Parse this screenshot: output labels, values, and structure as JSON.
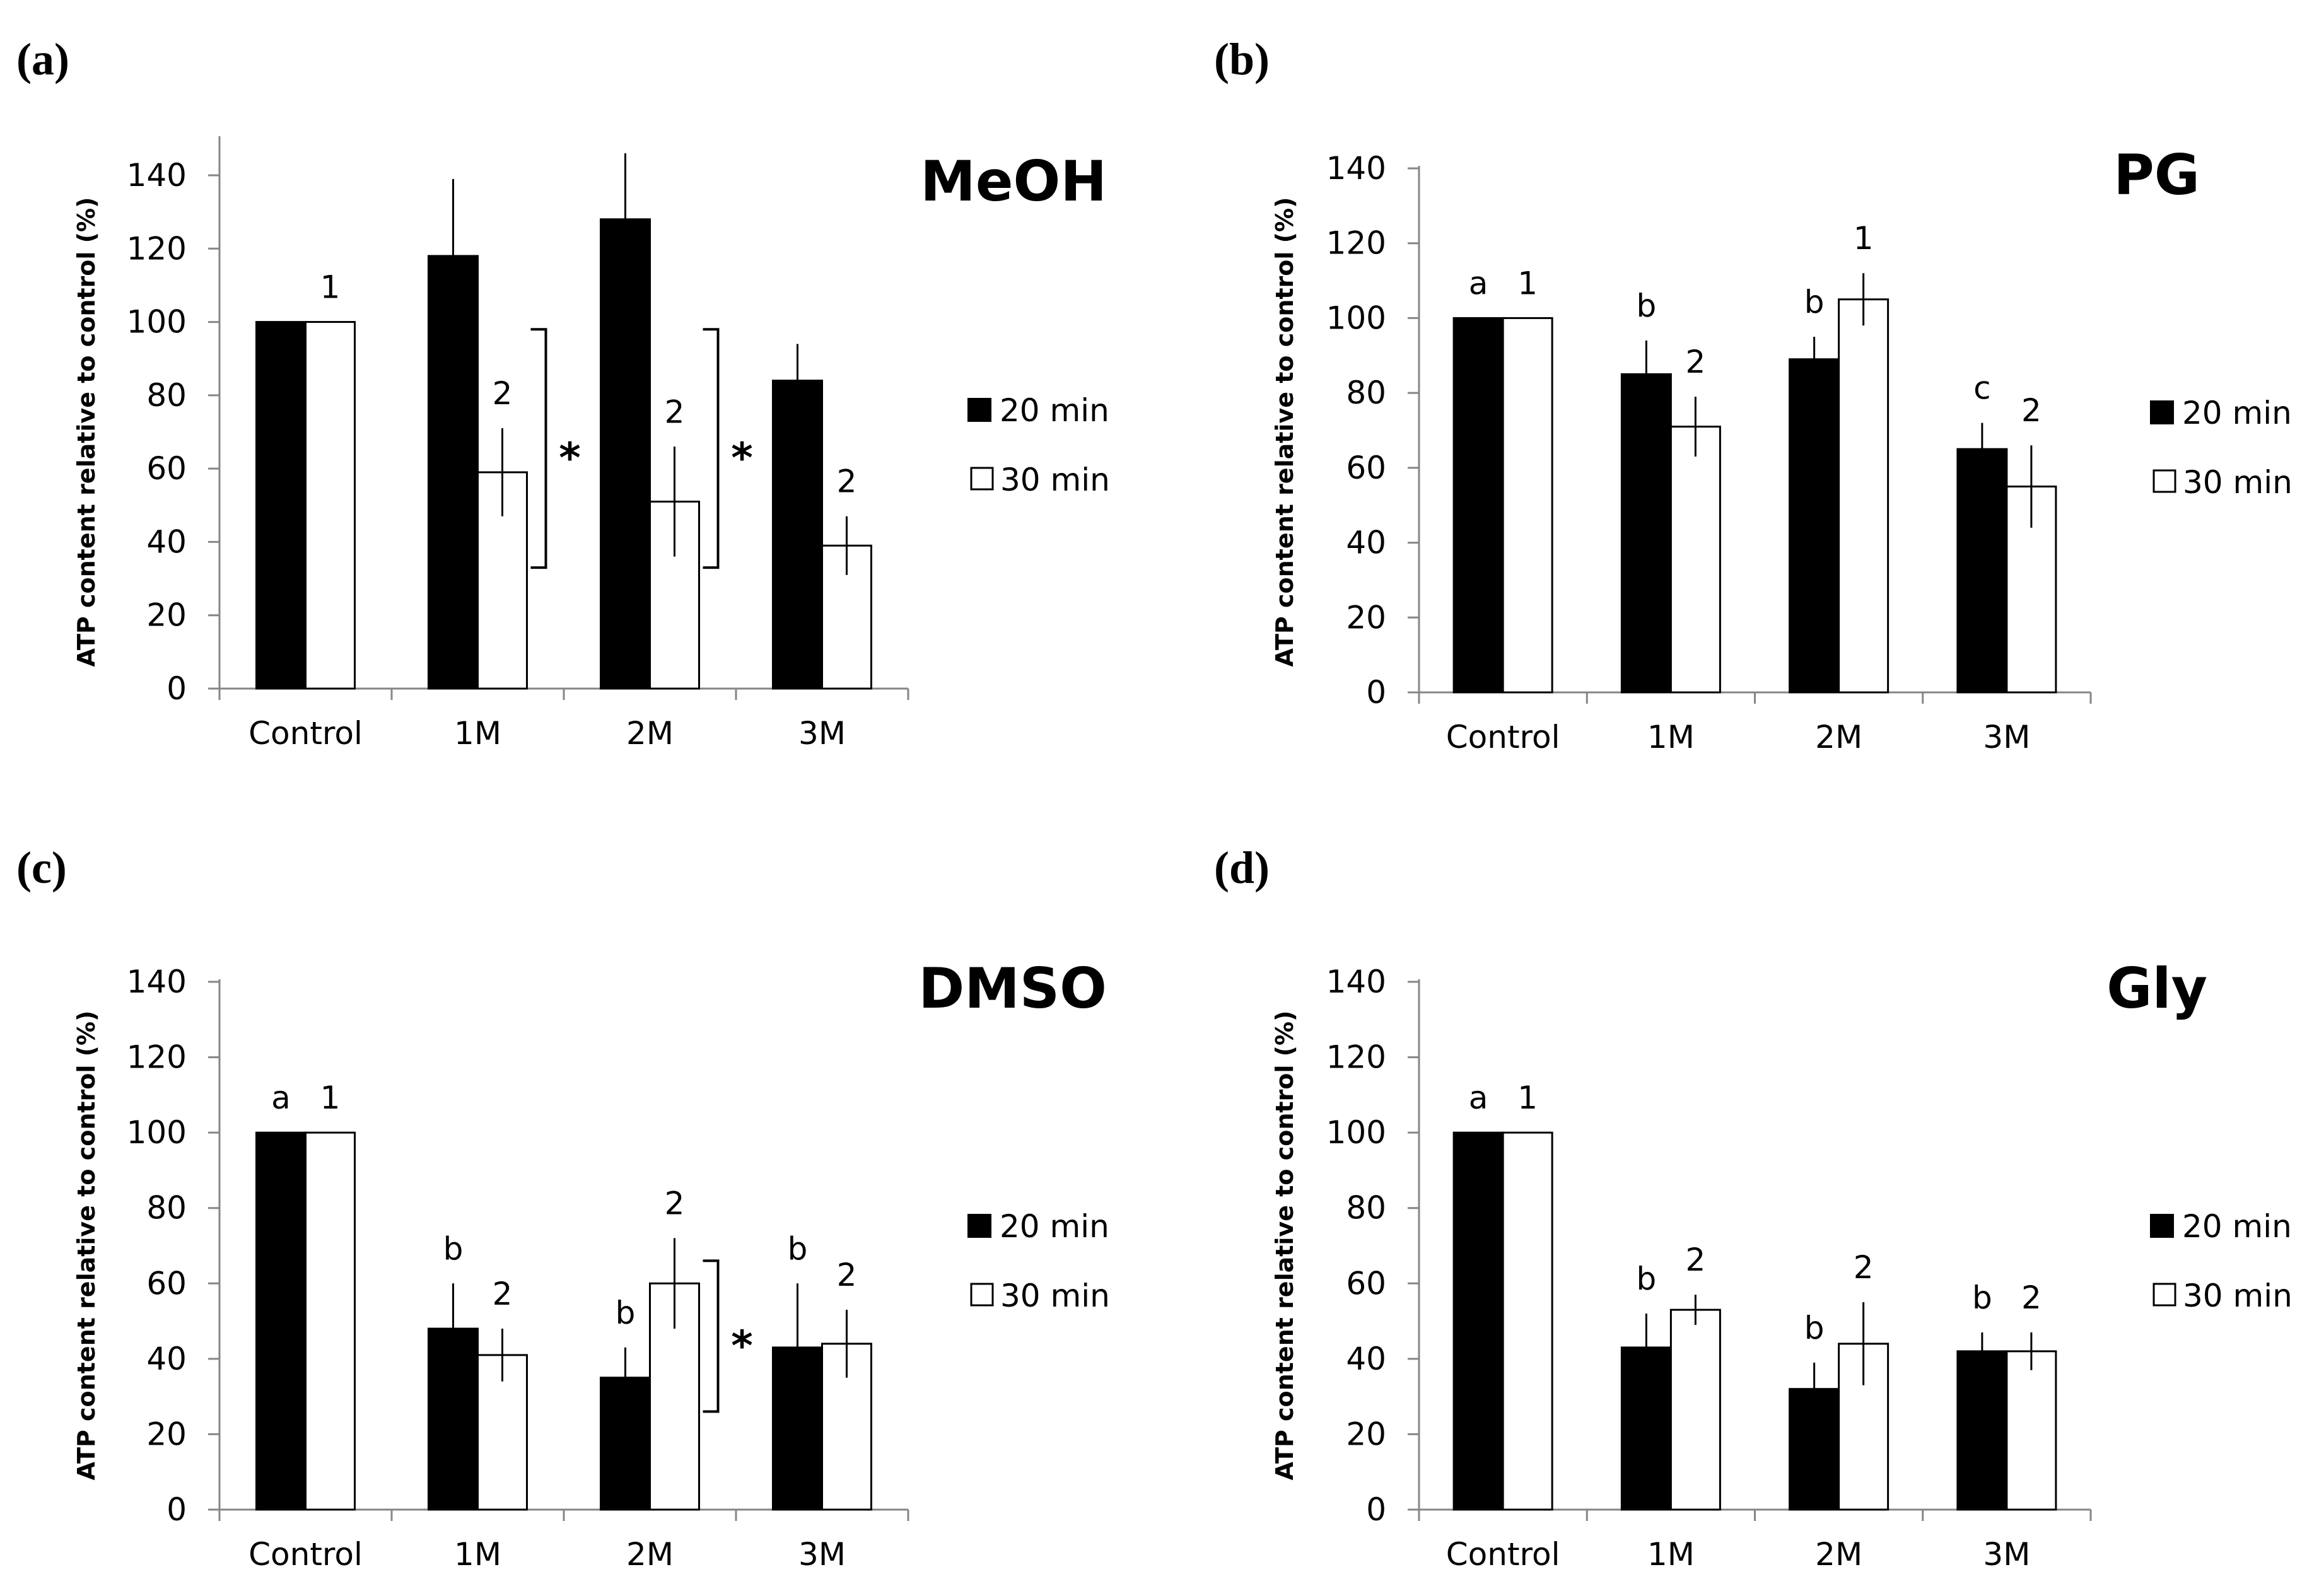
{
  "chart_data": [
    {
      "panel": "(a)",
      "type": "bar",
      "title": "MeOH",
      "ylabel": "ATP content relative to control (%)",
      "xlabel": "",
      "ylim": [
        0,
        150
      ],
      "yticks": [
        0,
        20,
        40,
        60,
        80,
        100,
        120,
        140
      ],
      "categories": [
        "Control",
        "1M",
        "2M",
        "3M"
      ],
      "series": [
        {
          "name": "20 min",
          "color": "#000000",
          "values": [
            100,
            118,
            128,
            84
          ],
          "errors": [
            0,
            21,
            18,
            10
          ]
        },
        {
          "name": "30 min",
          "color": "#ffffff",
          "values": [
            100,
            59,
            51,
            39
          ],
          "errors": [
            0,
            12,
            15,
            8
          ]
        }
      ],
      "annotations": [
        {
          "series": 1,
          "category": 0,
          "text": "1"
        },
        {
          "series": 1,
          "category": 1,
          "text": "2"
        },
        {
          "series": 1,
          "category": 2,
          "text": "2"
        },
        {
          "series": 1,
          "category": 3,
          "text": "2"
        }
      ],
      "brackets": [
        {
          "category": 1,
          "from": 33,
          "to": 98,
          "text": "*"
        },
        {
          "category": 2,
          "from": 33,
          "to": 98,
          "text": "*"
        }
      ],
      "legend": [
        "20 min",
        "30 min"
      ]
    },
    {
      "panel": "(b)",
      "type": "bar",
      "title": "PG",
      "ylabel": "ATP content relative to control (%)",
      "xlabel": "",
      "ylim": [
        0,
        140
      ],
      "yticks": [
        0,
        20,
        40,
        60,
        80,
        100,
        120,
        140
      ],
      "categories": [
        "Control",
        "1M",
        "2M",
        "3M"
      ],
      "series": [
        {
          "name": "20 min",
          "color": "#000000",
          "values": [
            100,
            85,
            89,
            65
          ],
          "errors": [
            0,
            9,
            6,
            7
          ]
        },
        {
          "name": "30 min",
          "color": "#ffffff",
          "values": [
            100,
            71,
            105,
            55
          ],
          "errors": [
            0,
            8,
            7,
            11
          ]
        }
      ],
      "annotations": [
        {
          "series": 0,
          "category": 0,
          "text": "a"
        },
        {
          "series": 1,
          "category": 0,
          "text": "1"
        },
        {
          "series": 0,
          "category": 1,
          "text": "b"
        },
        {
          "series": 1,
          "category": 1,
          "text": "2"
        },
        {
          "series": 0,
          "category": 2,
          "text": "b"
        },
        {
          "series": 1,
          "category": 2,
          "text": "1"
        },
        {
          "series": 0,
          "category": 3,
          "text": "c"
        },
        {
          "series": 1,
          "category": 3,
          "text": "2"
        }
      ],
      "brackets": [],
      "legend": [
        "20 min",
        "30 min"
      ]
    },
    {
      "panel": "(c)",
      "type": "bar",
      "title": "DMSO",
      "ylabel": "ATP content relative to control (%)",
      "xlabel": "",
      "ylim": [
        0,
        140
      ],
      "yticks": [
        0,
        20,
        40,
        60,
        80,
        100,
        120,
        140
      ],
      "categories": [
        "Control",
        "1M",
        "2M",
        "3M"
      ],
      "series": [
        {
          "name": "20 min",
          "color": "#000000",
          "values": [
            100,
            48,
            35,
            43
          ],
          "errors": [
            0,
            12,
            8,
            17
          ]
        },
        {
          "name": "30 min",
          "color": "#ffffff",
          "values": [
            100,
            41,
            60,
            44
          ],
          "errors": [
            0,
            7,
            12,
            9
          ]
        }
      ],
      "annotations": [
        {
          "series": 0,
          "category": 0,
          "text": "a"
        },
        {
          "series": 1,
          "category": 0,
          "text": "1"
        },
        {
          "series": 0,
          "category": 1,
          "text": "b"
        },
        {
          "series": 1,
          "category": 1,
          "text": "2"
        },
        {
          "series": 0,
          "category": 2,
          "text": "b"
        },
        {
          "series": 1,
          "category": 2,
          "text": "2"
        },
        {
          "series": 0,
          "category": 3,
          "text": "b"
        },
        {
          "series": 1,
          "category": 3,
          "text": "2"
        }
      ],
      "brackets": [
        {
          "category": 2,
          "from": 26,
          "to": 66,
          "text": "*"
        }
      ],
      "legend": [
        "20 min",
        "30 min"
      ]
    },
    {
      "panel": "(d)",
      "type": "bar",
      "title": "Gly",
      "ylabel": "ATP content relative to control (%)",
      "xlabel": "",
      "ylim": [
        0,
        140
      ],
      "yticks": [
        0,
        20,
        40,
        60,
        80,
        100,
        120,
        140
      ],
      "categories": [
        "Control",
        "1M",
        "2M",
        "3M"
      ],
      "series": [
        {
          "name": "20 min",
          "color": "#000000",
          "values": [
            100,
            43,
            32,
            42
          ],
          "errors": [
            0,
            9,
            7,
            5
          ]
        },
        {
          "name": "30 min",
          "color": "#ffffff",
          "values": [
            100,
            53,
            44,
            42
          ],
          "errors": [
            0,
            4,
            11,
            5
          ]
        }
      ],
      "annotations": [
        {
          "series": 0,
          "category": 0,
          "text": "a"
        },
        {
          "series": 1,
          "category": 0,
          "text": "1"
        },
        {
          "series": 0,
          "category": 1,
          "text": "b"
        },
        {
          "series": 1,
          "category": 1,
          "text": "2"
        },
        {
          "series": 0,
          "category": 2,
          "text": "b"
        },
        {
          "series": 1,
          "category": 2,
          "text": "2"
        },
        {
          "series": 0,
          "category": 3,
          "text": "b"
        },
        {
          "series": 1,
          "category": 3,
          "text": "2"
        }
      ],
      "brackets": [],
      "legend": [
        "20 min",
        "30 min"
      ]
    }
  ]
}
